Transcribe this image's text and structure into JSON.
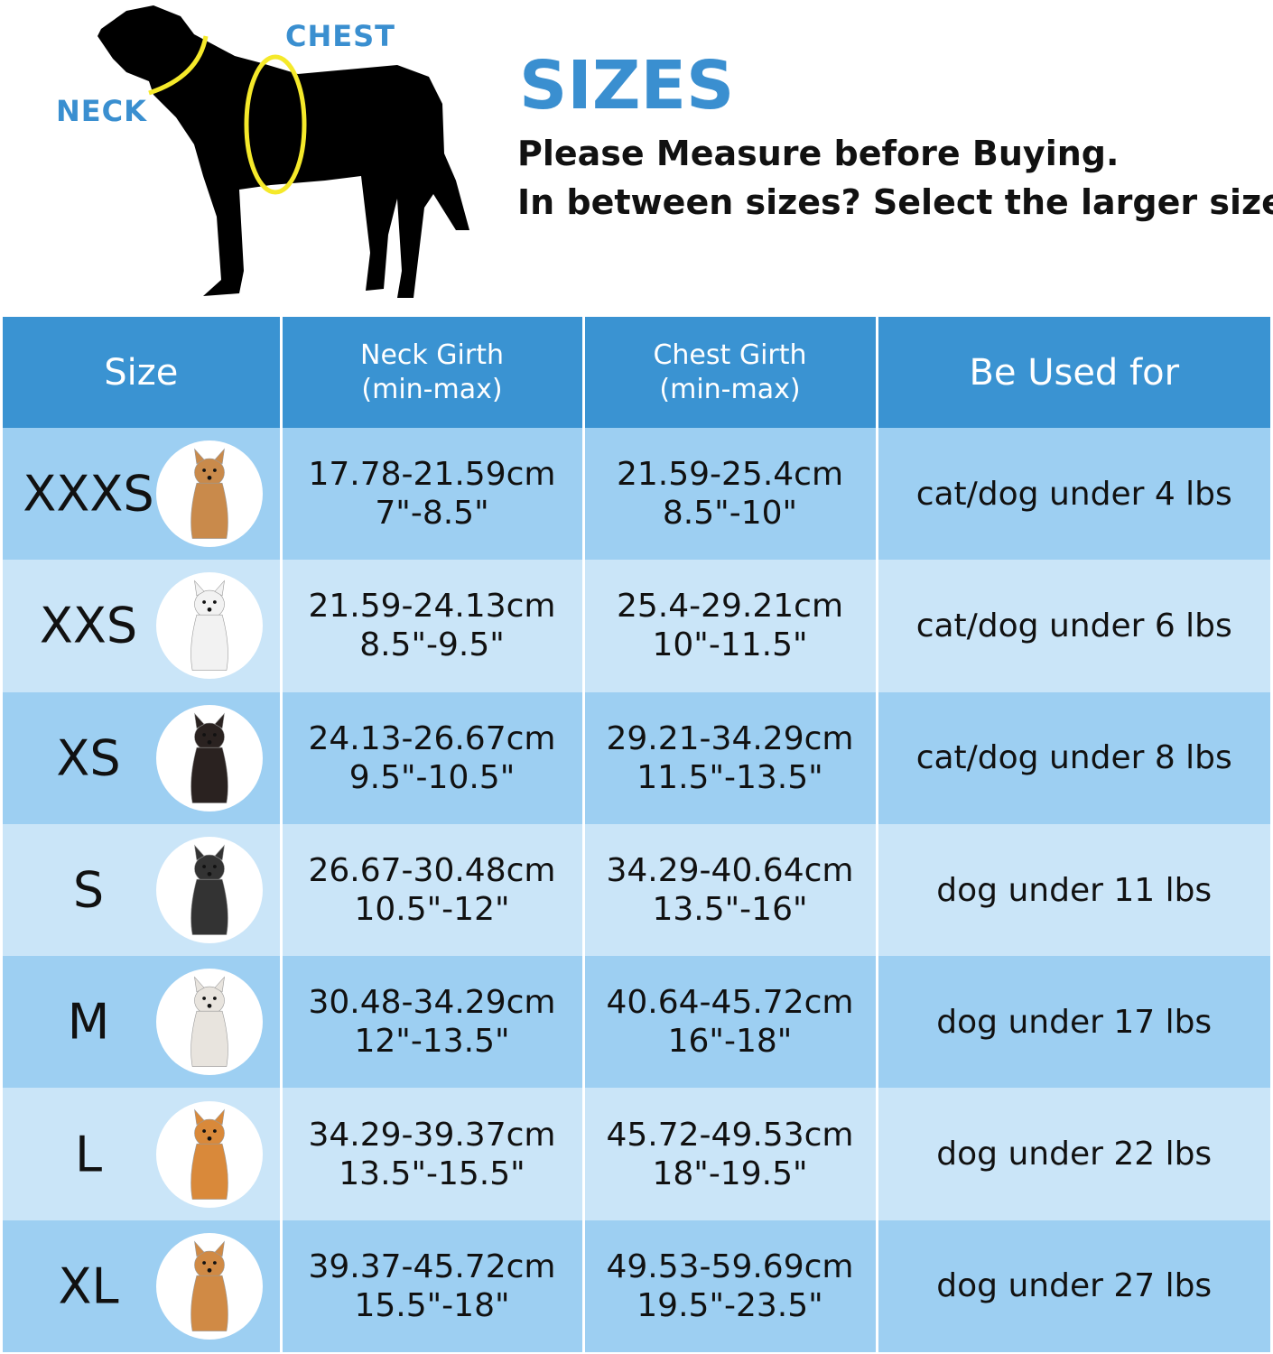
{
  "diagram": {
    "neck_label": "NECK",
    "chest_label": "CHEST"
  },
  "heading": {
    "title": "SIZES",
    "line1": "Please Measure before Buying.",
    "line2": "In between sizes? Select the larger size."
  },
  "table": {
    "headers": {
      "size": "Size",
      "neck1": "Neck Girth",
      "neck2": "(min-max)",
      "chest1": "Chest Girth",
      "chest2": "(min-max)",
      "used": "Be Used for"
    },
    "rows": [
      {
        "size": "XXXS",
        "neck_cm": "17.78-21.59cm",
        "neck_in": "7\"-8.5\"",
        "chest_cm": "21.59-25.4cm",
        "chest_in": "8.5\"-10\"",
        "used": "cat/dog under 4 lbs",
        "dog_color": "#c98a4b"
      },
      {
        "size": "XXS",
        "neck_cm": "21.59-24.13cm",
        "neck_in": "8.5\"-9.5\"",
        "chest_cm": "25.4-29.21cm",
        "chest_in": "10\"-11.5\"",
        "used": "cat/dog under 6 lbs",
        "dog_color": "#f2f2f2"
      },
      {
        "size": "XS",
        "neck_cm": "24.13-26.67cm",
        "neck_in": "9.5\"-10.5\"",
        "chest_cm": "29.21-34.29cm",
        "chest_in": "11.5\"-13.5\"",
        "used": "cat/dog under 8 lbs",
        "dog_color": "#2a2220"
      },
      {
        "size": "S",
        "neck_cm": "26.67-30.48cm",
        "neck_in": "10.5\"-12\"",
        "chest_cm": "34.29-40.64cm",
        "chest_in": "13.5\"-16\"",
        "used": "dog under 11 lbs",
        "dog_color": "#333333"
      },
      {
        "size": "M",
        "neck_cm": "30.48-34.29cm",
        "neck_in": "12\"-13.5\"",
        "chest_cm": "40.64-45.72cm",
        "chest_in": "16\"-18\"",
        "used": "dog under 17 lbs",
        "dog_color": "#e8e4de"
      },
      {
        "size": "L",
        "neck_cm": "34.29-39.37cm",
        "neck_in": "13.5\"-15.5\"",
        "chest_cm": "45.72-49.53cm",
        "chest_in": "18\"-19.5\"",
        "used": "dog under 22 lbs",
        "dog_color": "#d9893a"
      },
      {
        "size": "XL",
        "neck_cm": "39.37-45.72cm",
        "neck_in": "15.5\"-18\"",
        "chest_cm": "49.53-59.69cm",
        "chest_in": "19.5\"-23.5\"",
        "used": "dog under 27 lbs",
        "dog_color": "#d08a45"
      }
    ]
  },
  "colors": {
    "header": "#3a93d2",
    "row_odd": "#9dcff2",
    "row_even": "#cae5f8",
    "accent_text": "#3a8fd0",
    "ring": "#f5e92a"
  }
}
